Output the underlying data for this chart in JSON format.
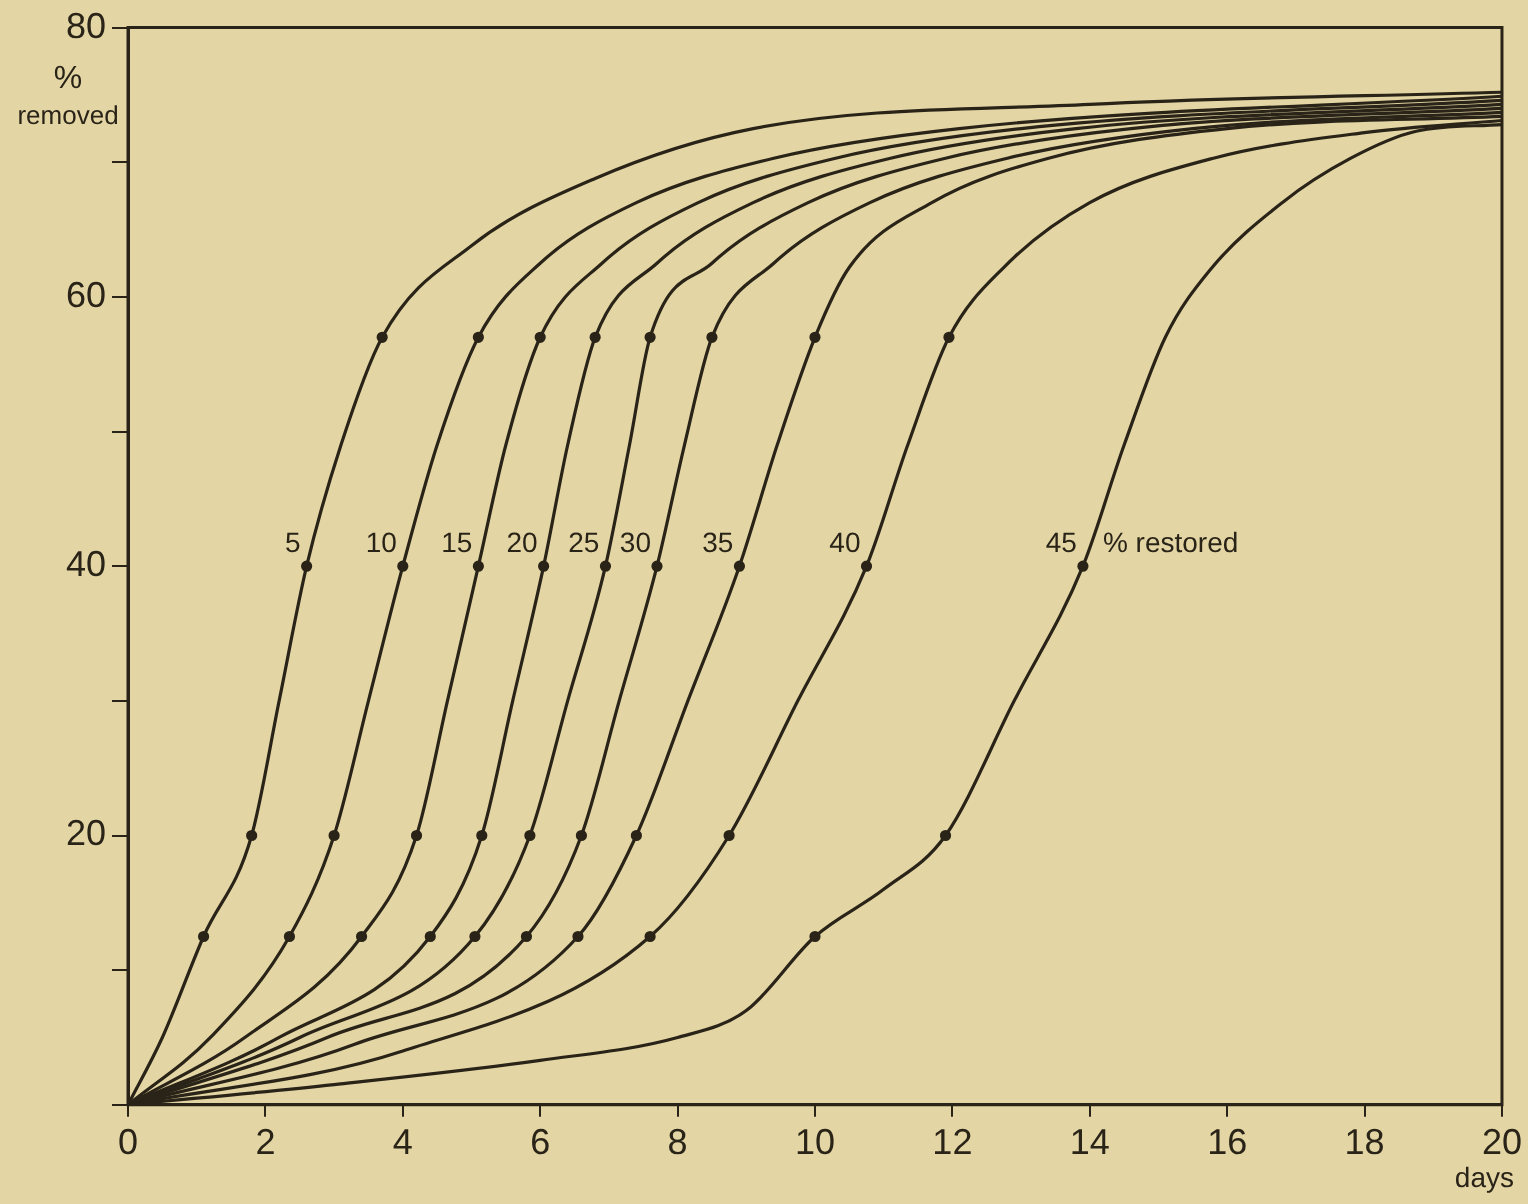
{
  "chart_data": {
    "type": "line",
    "xlabel": "days",
    "ylabel": "% removed",
    "xlim": [
      0,
      20
    ],
    "ylim": [
      0,
      80
    ],
    "xticks": [
      0,
      2,
      4,
      6,
      8,
      10,
      12,
      14,
      16,
      18,
      20
    ],
    "yticks": [
      {
        "value": 0,
        "label": null
      },
      {
        "value": 10,
        "label": null
      },
      20,
      {
        "value": 30,
        "label": null
      },
      40,
      {
        "value": 50,
        "label": null
      },
      60,
      {
        "value": 70,
        "label": null
      },
      80
    ],
    "grid": false,
    "legend": false,
    "line_style": "solid",
    "marker": "none",
    "annotations": [
      "% restored"
    ],
    "series": [
      {
        "name": "5",
        "color": "#2a2418",
        "x": [
          0,
          0.5,
          1.1,
          1.8,
          2.2,
          2.6,
          3.1,
          3.7,
          5.0,
          6.8,
          9.1,
          14,
          20
        ],
        "values": [
          0,
          5,
          12.5,
          20,
          30,
          40,
          49,
          57,
          63.8,
          68.8,
          72.5,
          74.3,
          75.2
        ]
      },
      {
        "name": "10",
        "color": "#2a2418",
        "x": [
          0,
          1.2,
          2.35,
          3.0,
          3.5,
          4.0,
          4.5,
          5.1,
          6.0,
          7.4,
          9.4,
          12.1,
          20
        ],
        "values": [
          0,
          5,
          12.5,
          20,
          30,
          40,
          49,
          57,
          62.5,
          67,
          70.3,
          72.5,
          74.9
        ]
      },
      {
        "name": "15",
        "color": "#2a2418",
        "x": [
          0,
          1.7,
          3.4,
          4.2,
          4.65,
          5.1,
          5.5,
          6.0,
          6.9,
          8.3,
          10.3,
          13,
          20
        ],
        "values": [
          0,
          5,
          12.5,
          20,
          30,
          40,
          49,
          57,
          62.5,
          67,
          70.3,
          72.5,
          74.6
        ]
      },
      {
        "name": "20",
        "color": "#2a2418",
        "x": [
          0,
          2.2,
          4.4,
          5.15,
          5.6,
          6.05,
          6.4,
          6.8,
          7.7,
          9.1,
          11.1,
          13.8,
          20
        ],
        "values": [
          0,
          5,
          12.5,
          20,
          30,
          40,
          49,
          57,
          62.5,
          67,
          70.3,
          72.5,
          74.3
        ]
      },
      {
        "name": "25",
        "color": "#2a2418",
        "x": [
          0,
          2.5,
          5.05,
          5.85,
          6.4,
          6.95,
          7.3,
          7.6,
          8.5,
          9.9,
          11.9,
          14.6,
          20
        ],
        "values": [
          0,
          5,
          12.5,
          20,
          30,
          40,
          49,
          57,
          62.5,
          67,
          70.3,
          72.5,
          74.0
        ]
      },
      {
        "name": "30",
        "color": "#2a2418",
        "x": [
          0,
          2.9,
          5.8,
          6.6,
          7.15,
          7.7,
          8.1,
          8.5,
          9.4,
          10.8,
          12.8,
          15.5,
          20
        ],
        "values": [
          0,
          5,
          12.5,
          20,
          30,
          40,
          49,
          57,
          62.5,
          67,
          70.3,
          72.5,
          73.7
        ]
      },
      {
        "name": "35",
        "color": "#2a2418",
        "x": [
          0,
          3.3,
          6.55,
          7.4,
          8.15,
          8.9,
          9.45,
          10.0,
          10.5,
          11.7,
          13.4,
          16,
          20
        ],
        "values": [
          0,
          4.5,
          12.5,
          20,
          30,
          40,
          49,
          57,
          62.2,
          67,
          70.3,
          72.5,
          73.4
        ]
      },
      {
        "name": "40",
        "color": "#2a2418",
        "x": [
          0,
          4,
          7.6,
          8.75,
          9.75,
          10.75,
          11.35,
          11.95,
          12.75,
          14.0,
          15.8,
          18,
          20
        ],
        "values": [
          0,
          4,
          12.5,
          20,
          30,
          40,
          49,
          57,
          62.2,
          67,
          70.3,
          72.2,
          73.1
        ]
      },
      {
        "name": "45",
        "color": "#2a2418",
        "x": [
          0,
          3,
          6,
          8,
          9,
          10,
          11,
          11.9,
          12.9,
          13.9,
          14.5,
          15.1,
          15.75,
          16.8,
          17.8,
          18.75,
          20
        ],
        "values": [
          0,
          1.5,
          3.3,
          5,
          7,
          12.5,
          16,
          20,
          30,
          40,
          49,
          57,
          62,
          67,
          70.3,
          72.3,
          72.8
        ]
      },
      {
        "type": "scatter",
        "color": "#2a2418",
        "marker": "circle",
        "x": [
          1.1,
          1.8,
          2.6,
          3.7,
          2.35,
          3.0,
          4.0,
          5.1,
          3.4,
          4.2,
          5.1,
          6.0,
          4.4,
          5.15,
          6.05,
          6.8,
          5.05,
          5.85,
          6.95,
          7.6,
          5.8,
          6.6,
          7.7,
          8.5,
          6.55,
          7.4,
          8.9,
          10.0,
          7.6,
          8.75,
          10.75,
          11.95,
          10.0,
          11.9,
          13.9
        ],
        "values": [
          12.5,
          20,
          40,
          57,
          12.5,
          20,
          40,
          57,
          12.5,
          20,
          40,
          57,
          12.5,
          20,
          40,
          57,
          12.5,
          20,
          40,
          57,
          12.5,
          20,
          40,
          57,
          12.5,
          20,
          40,
          57,
          12.5,
          20,
          40,
          57,
          12.5,
          20,
          40
        ]
      }
    ]
  }
}
